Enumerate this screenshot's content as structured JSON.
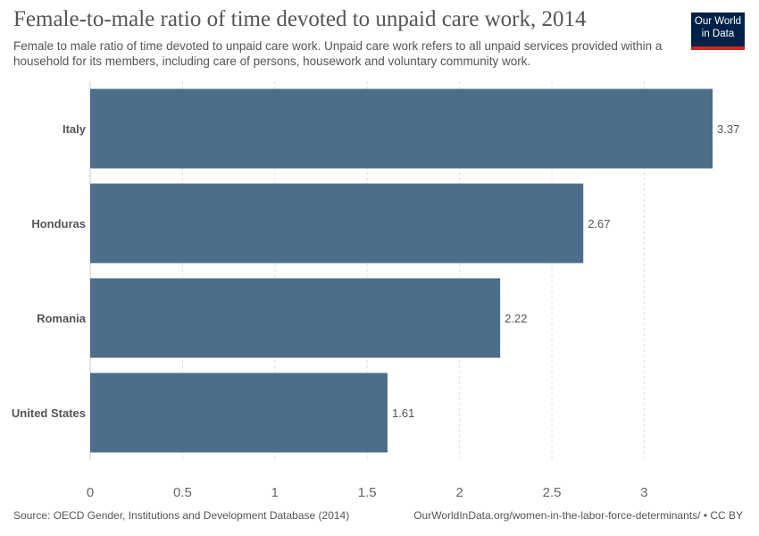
{
  "title": "Female-to-male ratio of time devoted to unpaid care work, 2014",
  "subtitle": "Female to male ratio of time devoted to unpaid care work. Unpaid care work refers to all unpaid services provided within a household for its members, including care of persons, housework and voluntary community work.",
  "logo": {
    "line1": "Our World",
    "line2": "in Data",
    "bg_color": "#002147",
    "accent_color": "#ce261e"
  },
  "source": "Source: OECD Gender, Institutions and Development Database (2014)",
  "attribution": "OurWorldInData.org/women-in-the-labor-force-determinants/ • CC BY",
  "chart_data": {
    "type": "bar",
    "orientation": "horizontal",
    "categories": [
      "Italy",
      "Honduras",
      "Romania",
      "United States"
    ],
    "values": [
      3.37,
      2.67,
      2.22,
      1.61
    ],
    "value_labels": [
      "3.37",
      "2.67",
      "2.22",
      "1.61"
    ],
    "xticks": [
      0,
      0.5,
      1,
      1.5,
      2,
      2.5,
      3
    ],
    "xtick_labels": [
      "0",
      "0.5",
      "1",
      "1.5",
      "2",
      "2.5",
      "3"
    ],
    "xlim": [
      0,
      3.37
    ],
    "grid": true,
    "bar_color": "#4c6e8a"
  }
}
